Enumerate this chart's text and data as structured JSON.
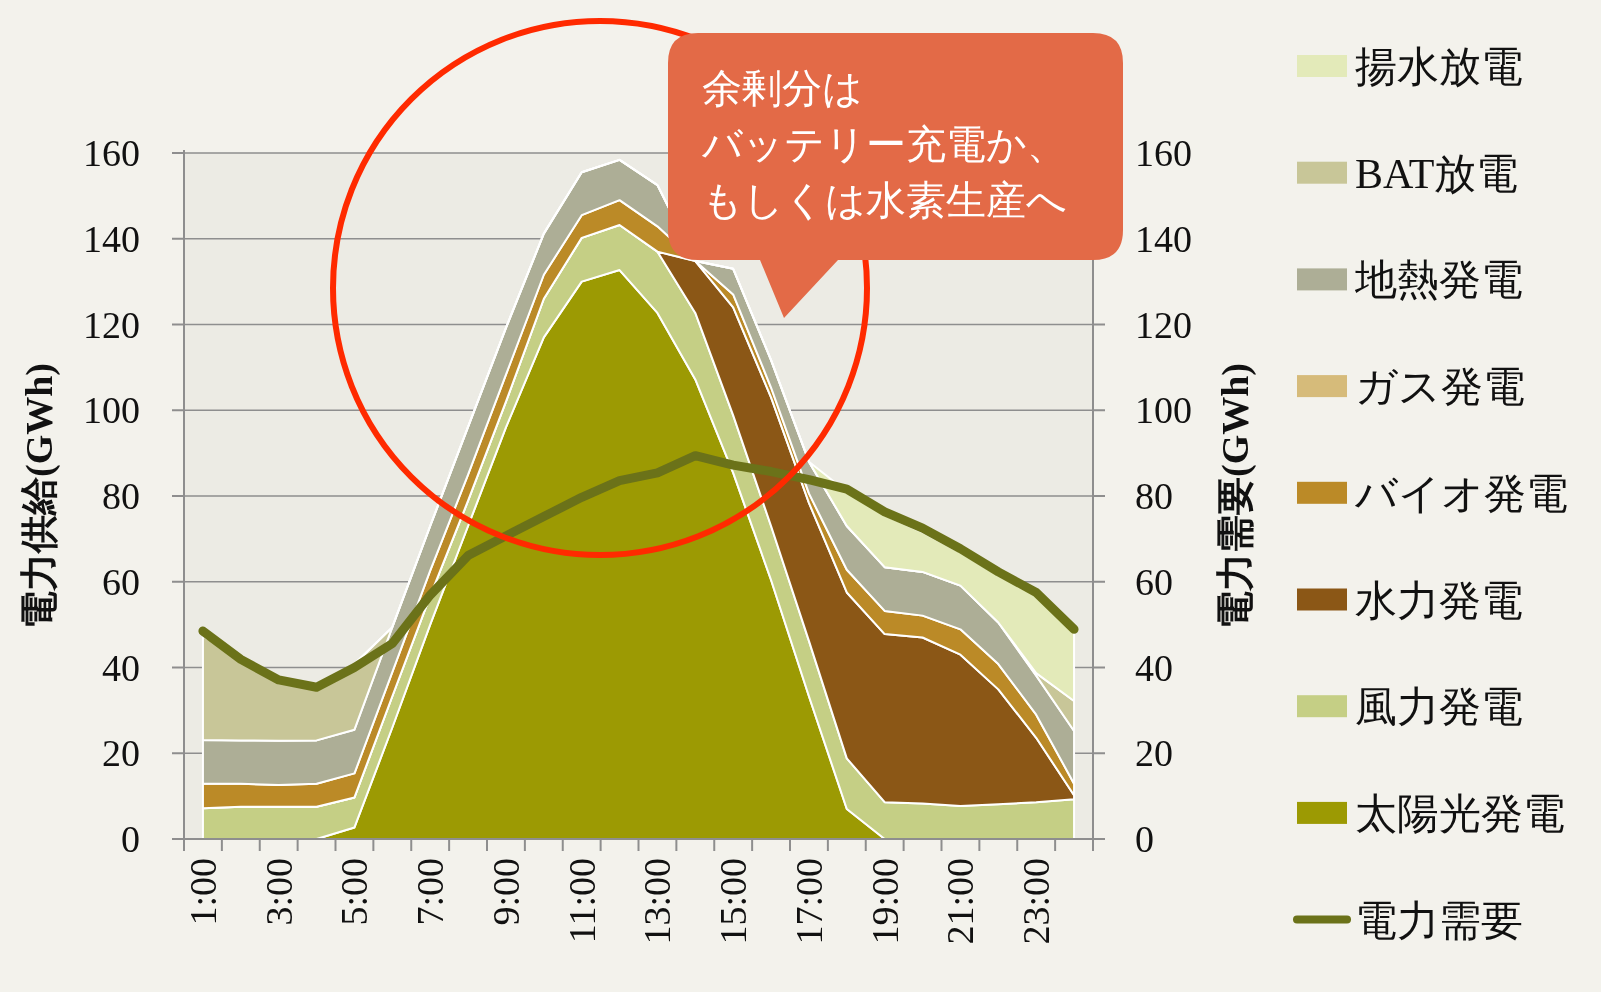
{
  "chart_data": {
    "type": "area",
    "stacked": true,
    "ylabel": "電力供給(GWh)",
    "y2label": "電力需要(GWh)",
    "categories": [
      "1:00",
      null,
      "3:00",
      null,
      "5:00",
      null,
      "7:00",
      null,
      "9:00",
      null,
      "11:00",
      null,
      "13:00",
      null,
      "15:00",
      null,
      "17:00",
      null,
      "19:00",
      null,
      "21:00",
      null,
      "23:00",
      null
    ],
    "ylim": [
      0,
      160
    ],
    "yticks": [
      0,
      20,
      40,
      60,
      80,
      100,
      120,
      140,
      160
    ],
    "y2lim": [
      0,
      160
    ],
    "y2ticks": [
      0,
      20,
      40,
      60,
      80,
      100,
      120,
      140,
      160
    ],
    "grid": "y",
    "legend": "right",
    "annotations": [
      "余剰分は",
      "バッテリー充電か、",
      "もしくは水素生産へ"
    ],
    "series": [
      {
        "name": "太陽光発電",
        "color": "#9c9a03",
        "values": [
          0,
          0,
          0,
          0,
          2.7,
          26,
          50,
          73,
          96,
          117,
          130,
          132.7,
          122.7,
          107.2,
          85.4,
          60.4,
          33.3,
          7.0,
          0,
          0,
          0,
          0,
          0,
          0
        ]
      },
      {
        "name": "風力発電",
        "color": "#c5cf85",
        "values": [
          7.2,
          7.5,
          7.5,
          7.5,
          7.0,
          7.3,
          6.7,
          5.9,
          6.0,
          9.0,
          10.2,
          10.5,
          14.3,
          15.5,
          13.4,
          12.6,
          12.9,
          11.8,
          8.6,
          8.3,
          7.7,
          8.1,
          8.6,
          9.3
        ]
      },
      {
        "name": "水力発電",
        "color": "#8b5716",
        "values": [
          0,
          0,
          0,
          0,
          0,
          0,
          0,
          0,
          0,
          0,
          0,
          0,
          0,
          12.1,
          25.2,
          30,
          32.2,
          38.7,
          39.2,
          38.7,
          35.3,
          26.8,
          15,
          0.9
        ]
      },
      {
        "name": "バイオ発電",
        "color": "#bb8a27",
        "values": [
          5.7,
          5.4,
          5.1,
          5.4,
          5.6,
          5.6,
          5.9,
          6.1,
          6.3,
          5.6,
          5.3,
          5.8,
          5.9,
          null,
          3,
          2.3,
          2.2,
          5.3,
          5.4,
          5.1,
          5.9,
          5.9,
          5.4,
          2.7
        ]
      },
      {
        "name": "ガス発電",
        "color": "#d6bb7a",
        "values": [
          null,
          null,
          null,
          null,
          null,
          null,
          null,
          null,
          null,
          null,
          null,
          null,
          null,
          null,
          null,
          null,
          null,
          null,
          null,
          null,
          null,
          null,
          null,
          null
        ]
      },
      {
        "name": "地熱発電",
        "color": "#adae96",
        "values": [
          10.2,
          10.1,
          10.3,
          10.1,
          10.2,
          10.5,
          10.4,
          11.1,
          10.9,
          9.6,
          10,
          9.4,
          9.6,
          null,
          6,
          6.4,
          7.4,
          10.2,
          10.2,
          10.2,
          10.2,
          9.7,
          9.1,
          12.3
        ]
      },
      {
        "name": "BAT放電",
        "color": "#c8c698",
        "values": [
          24.2,
          19.4,
          14.9,
          13,
          15.3,
          0,
          0,
          0,
          0,
          0,
          0,
          0,
          0,
          null,
          0,
          0,
          0,
          0,
          0,
          0,
          0,
          0,
          0.6,
          7
        ]
      },
      {
        "name": "揚水放電",
        "color": "#e3eab9",
        "values": [
          0,
          0,
          0,
          0,
          0,
          0,
          0,
          0,
          0,
          0,
          0,
          0,
          0,
          null,
          0,
          0,
          0,
          8,
          12.1,
          9.2,
          7.7,
          11,
          18.1,
          16.3
        ]
      },
      {
        "name": "電力需要",
        "type": "line",
        "axis": "y2",
        "color": "#6b7219",
        "values": [
          48.5,
          41.9,
          37.1,
          35.4,
          40,
          45.6,
          56.9,
          66.1,
          70.7,
          75.2,
          79.7,
          83.6,
          85.4,
          89.4,
          87.2,
          85.7,
          83.8,
          81.6,
          76.3,
          72.5,
          67.7,
          62.3,
          57.5,
          48.9
        ]
      }
    ]
  }
}
